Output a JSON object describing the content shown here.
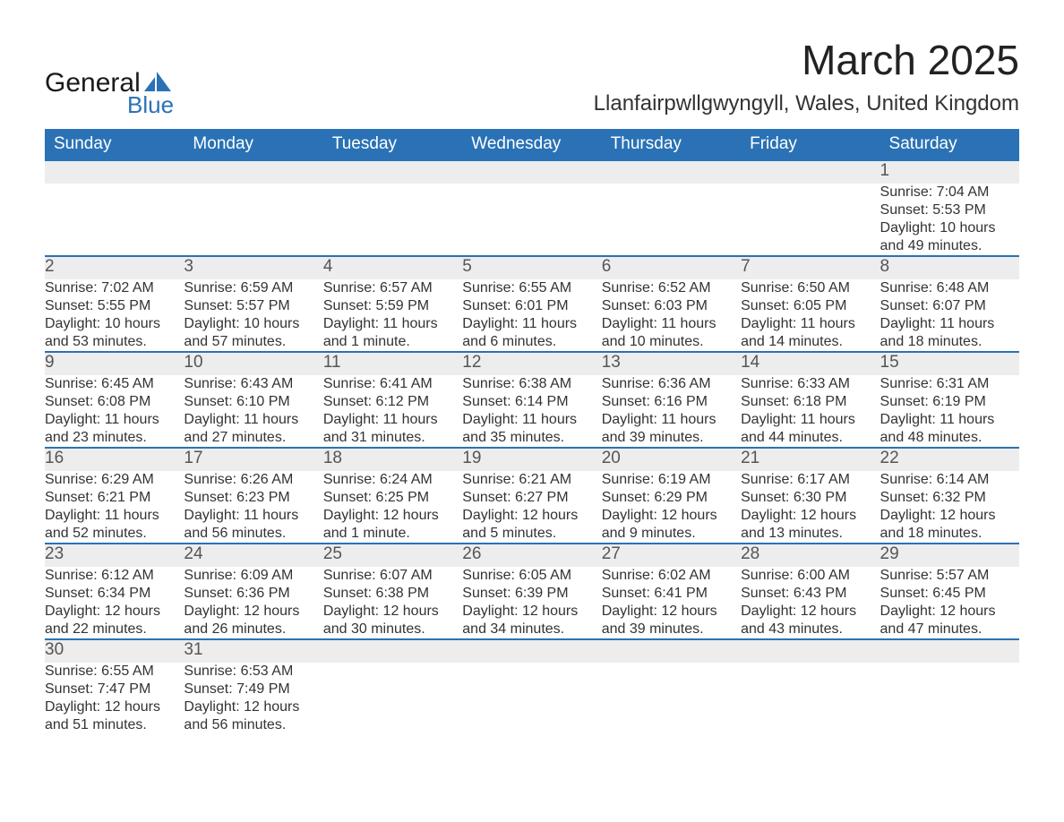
{
  "brand": {
    "name_a": "General",
    "name_b": "Blue",
    "sail_color": "#2a72b5"
  },
  "title": "March 2025",
  "location": "Llanfairpwllgwyngyll, Wales, United Kingdom",
  "colors": {
    "header_bg": "#2a72b5",
    "header_fg": "#ffffff",
    "daynum_bg": "#ededed",
    "row_border": "#2a72b5",
    "text": "#333333"
  },
  "typography": {
    "title_size_pt": 34,
    "location_size_pt": 18,
    "header_size_pt": 14,
    "body_size_pt": 12
  },
  "calendar": {
    "columns": [
      "Sunday",
      "Monday",
      "Tuesday",
      "Wednesday",
      "Thursday",
      "Friday",
      "Saturday"
    ],
    "weeks": [
      [
        null,
        null,
        null,
        null,
        null,
        null,
        {
          "d": "1",
          "sr": "7:04 AM",
          "ss": "5:53 PM",
          "dl": "10 hours and 49 minutes."
        }
      ],
      [
        {
          "d": "2",
          "sr": "7:02 AM",
          "ss": "5:55 PM",
          "dl": "10 hours and 53 minutes."
        },
        {
          "d": "3",
          "sr": "6:59 AM",
          "ss": "5:57 PM",
          "dl": "10 hours and 57 minutes."
        },
        {
          "d": "4",
          "sr": "6:57 AM",
          "ss": "5:59 PM",
          "dl": "11 hours and 1 minute."
        },
        {
          "d": "5",
          "sr": "6:55 AM",
          "ss": "6:01 PM",
          "dl": "11 hours and 6 minutes."
        },
        {
          "d": "6",
          "sr": "6:52 AM",
          "ss": "6:03 PM",
          "dl": "11 hours and 10 minutes."
        },
        {
          "d": "7",
          "sr": "6:50 AM",
          "ss": "6:05 PM",
          "dl": "11 hours and 14 minutes."
        },
        {
          "d": "8",
          "sr": "6:48 AM",
          "ss": "6:07 PM",
          "dl": "11 hours and 18 minutes."
        }
      ],
      [
        {
          "d": "9",
          "sr": "6:45 AM",
          "ss": "6:08 PM",
          "dl": "11 hours and 23 minutes."
        },
        {
          "d": "10",
          "sr": "6:43 AM",
          "ss": "6:10 PM",
          "dl": "11 hours and 27 minutes."
        },
        {
          "d": "11",
          "sr": "6:41 AM",
          "ss": "6:12 PM",
          "dl": "11 hours and 31 minutes."
        },
        {
          "d": "12",
          "sr": "6:38 AM",
          "ss": "6:14 PM",
          "dl": "11 hours and 35 minutes."
        },
        {
          "d": "13",
          "sr": "6:36 AM",
          "ss": "6:16 PM",
          "dl": "11 hours and 39 minutes."
        },
        {
          "d": "14",
          "sr": "6:33 AM",
          "ss": "6:18 PM",
          "dl": "11 hours and 44 minutes."
        },
        {
          "d": "15",
          "sr": "6:31 AM",
          "ss": "6:19 PM",
          "dl": "11 hours and 48 minutes."
        }
      ],
      [
        {
          "d": "16",
          "sr": "6:29 AM",
          "ss": "6:21 PM",
          "dl": "11 hours and 52 minutes."
        },
        {
          "d": "17",
          "sr": "6:26 AM",
          "ss": "6:23 PM",
          "dl": "11 hours and 56 minutes."
        },
        {
          "d": "18",
          "sr": "6:24 AM",
          "ss": "6:25 PM",
          "dl": "12 hours and 1 minute."
        },
        {
          "d": "19",
          "sr": "6:21 AM",
          "ss": "6:27 PM",
          "dl": "12 hours and 5 minutes."
        },
        {
          "d": "20",
          "sr": "6:19 AM",
          "ss": "6:29 PM",
          "dl": "12 hours and 9 minutes."
        },
        {
          "d": "21",
          "sr": "6:17 AM",
          "ss": "6:30 PM",
          "dl": "12 hours and 13 minutes."
        },
        {
          "d": "22",
          "sr": "6:14 AM",
          "ss": "6:32 PM",
          "dl": "12 hours and 18 minutes."
        }
      ],
      [
        {
          "d": "23",
          "sr": "6:12 AM",
          "ss": "6:34 PM",
          "dl": "12 hours and 22 minutes."
        },
        {
          "d": "24",
          "sr": "6:09 AM",
          "ss": "6:36 PM",
          "dl": "12 hours and 26 minutes."
        },
        {
          "d": "25",
          "sr": "6:07 AM",
          "ss": "6:38 PM",
          "dl": "12 hours and 30 minutes."
        },
        {
          "d": "26",
          "sr": "6:05 AM",
          "ss": "6:39 PM",
          "dl": "12 hours and 34 minutes."
        },
        {
          "d": "27",
          "sr": "6:02 AM",
          "ss": "6:41 PM",
          "dl": "12 hours and 39 minutes."
        },
        {
          "d": "28",
          "sr": "6:00 AM",
          "ss": "6:43 PM",
          "dl": "12 hours and 43 minutes."
        },
        {
          "d": "29",
          "sr": "5:57 AM",
          "ss": "6:45 PM",
          "dl": "12 hours and 47 minutes."
        }
      ],
      [
        {
          "d": "30",
          "sr": "6:55 AM",
          "ss": "7:47 PM",
          "dl": "12 hours and 51 minutes."
        },
        {
          "d": "31",
          "sr": "6:53 AM",
          "ss": "7:49 PM",
          "dl": "12 hours and 56 minutes."
        },
        null,
        null,
        null,
        null,
        null
      ]
    ],
    "labels": {
      "sunrise": "Sunrise:",
      "sunset": "Sunset:",
      "daylight": "Daylight:"
    }
  }
}
